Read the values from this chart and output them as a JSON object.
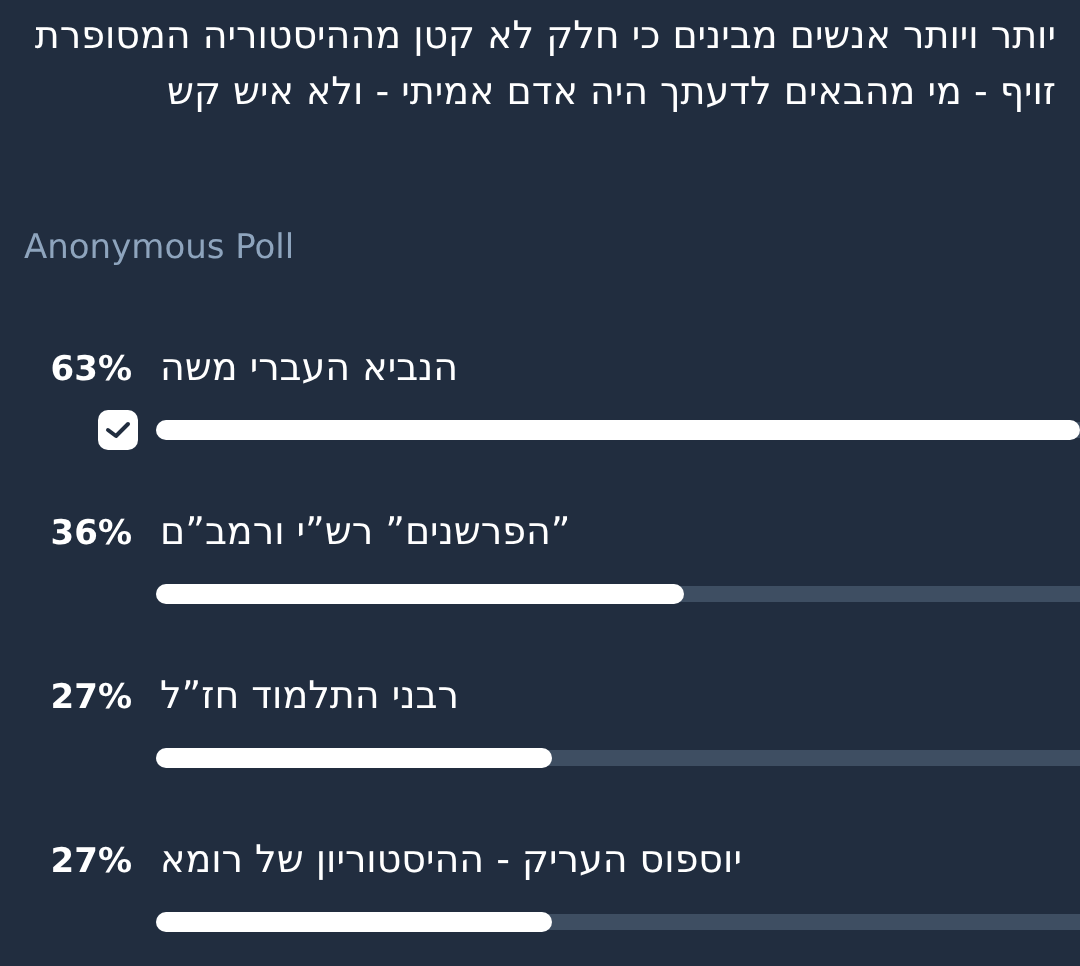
{
  "chart_data": {
    "type": "bar",
    "orientation": "horizontal",
    "title": "יותר ויותר אנשים מבינים כי חלק לא קטן מההיסטוריה המסופרת זויף - מי מהבאים לדעתך היה אדם אמיתי - ולא איש קש",
    "subtitle": "Anonymous Poll",
    "categories": [
      "הנביא העברי משה",
      "”הפרשנים” רש”י ורמב”ם",
      "רבני התלמוד חז”ל",
      "יוספוס העריק - ההיסטוריון של רומא"
    ],
    "values": [
      63,
      36,
      27,
      27
    ],
    "value_labels": [
      "63%",
      "36%",
      "27%",
      "27%"
    ],
    "color": "#ffffff"
  }
}
